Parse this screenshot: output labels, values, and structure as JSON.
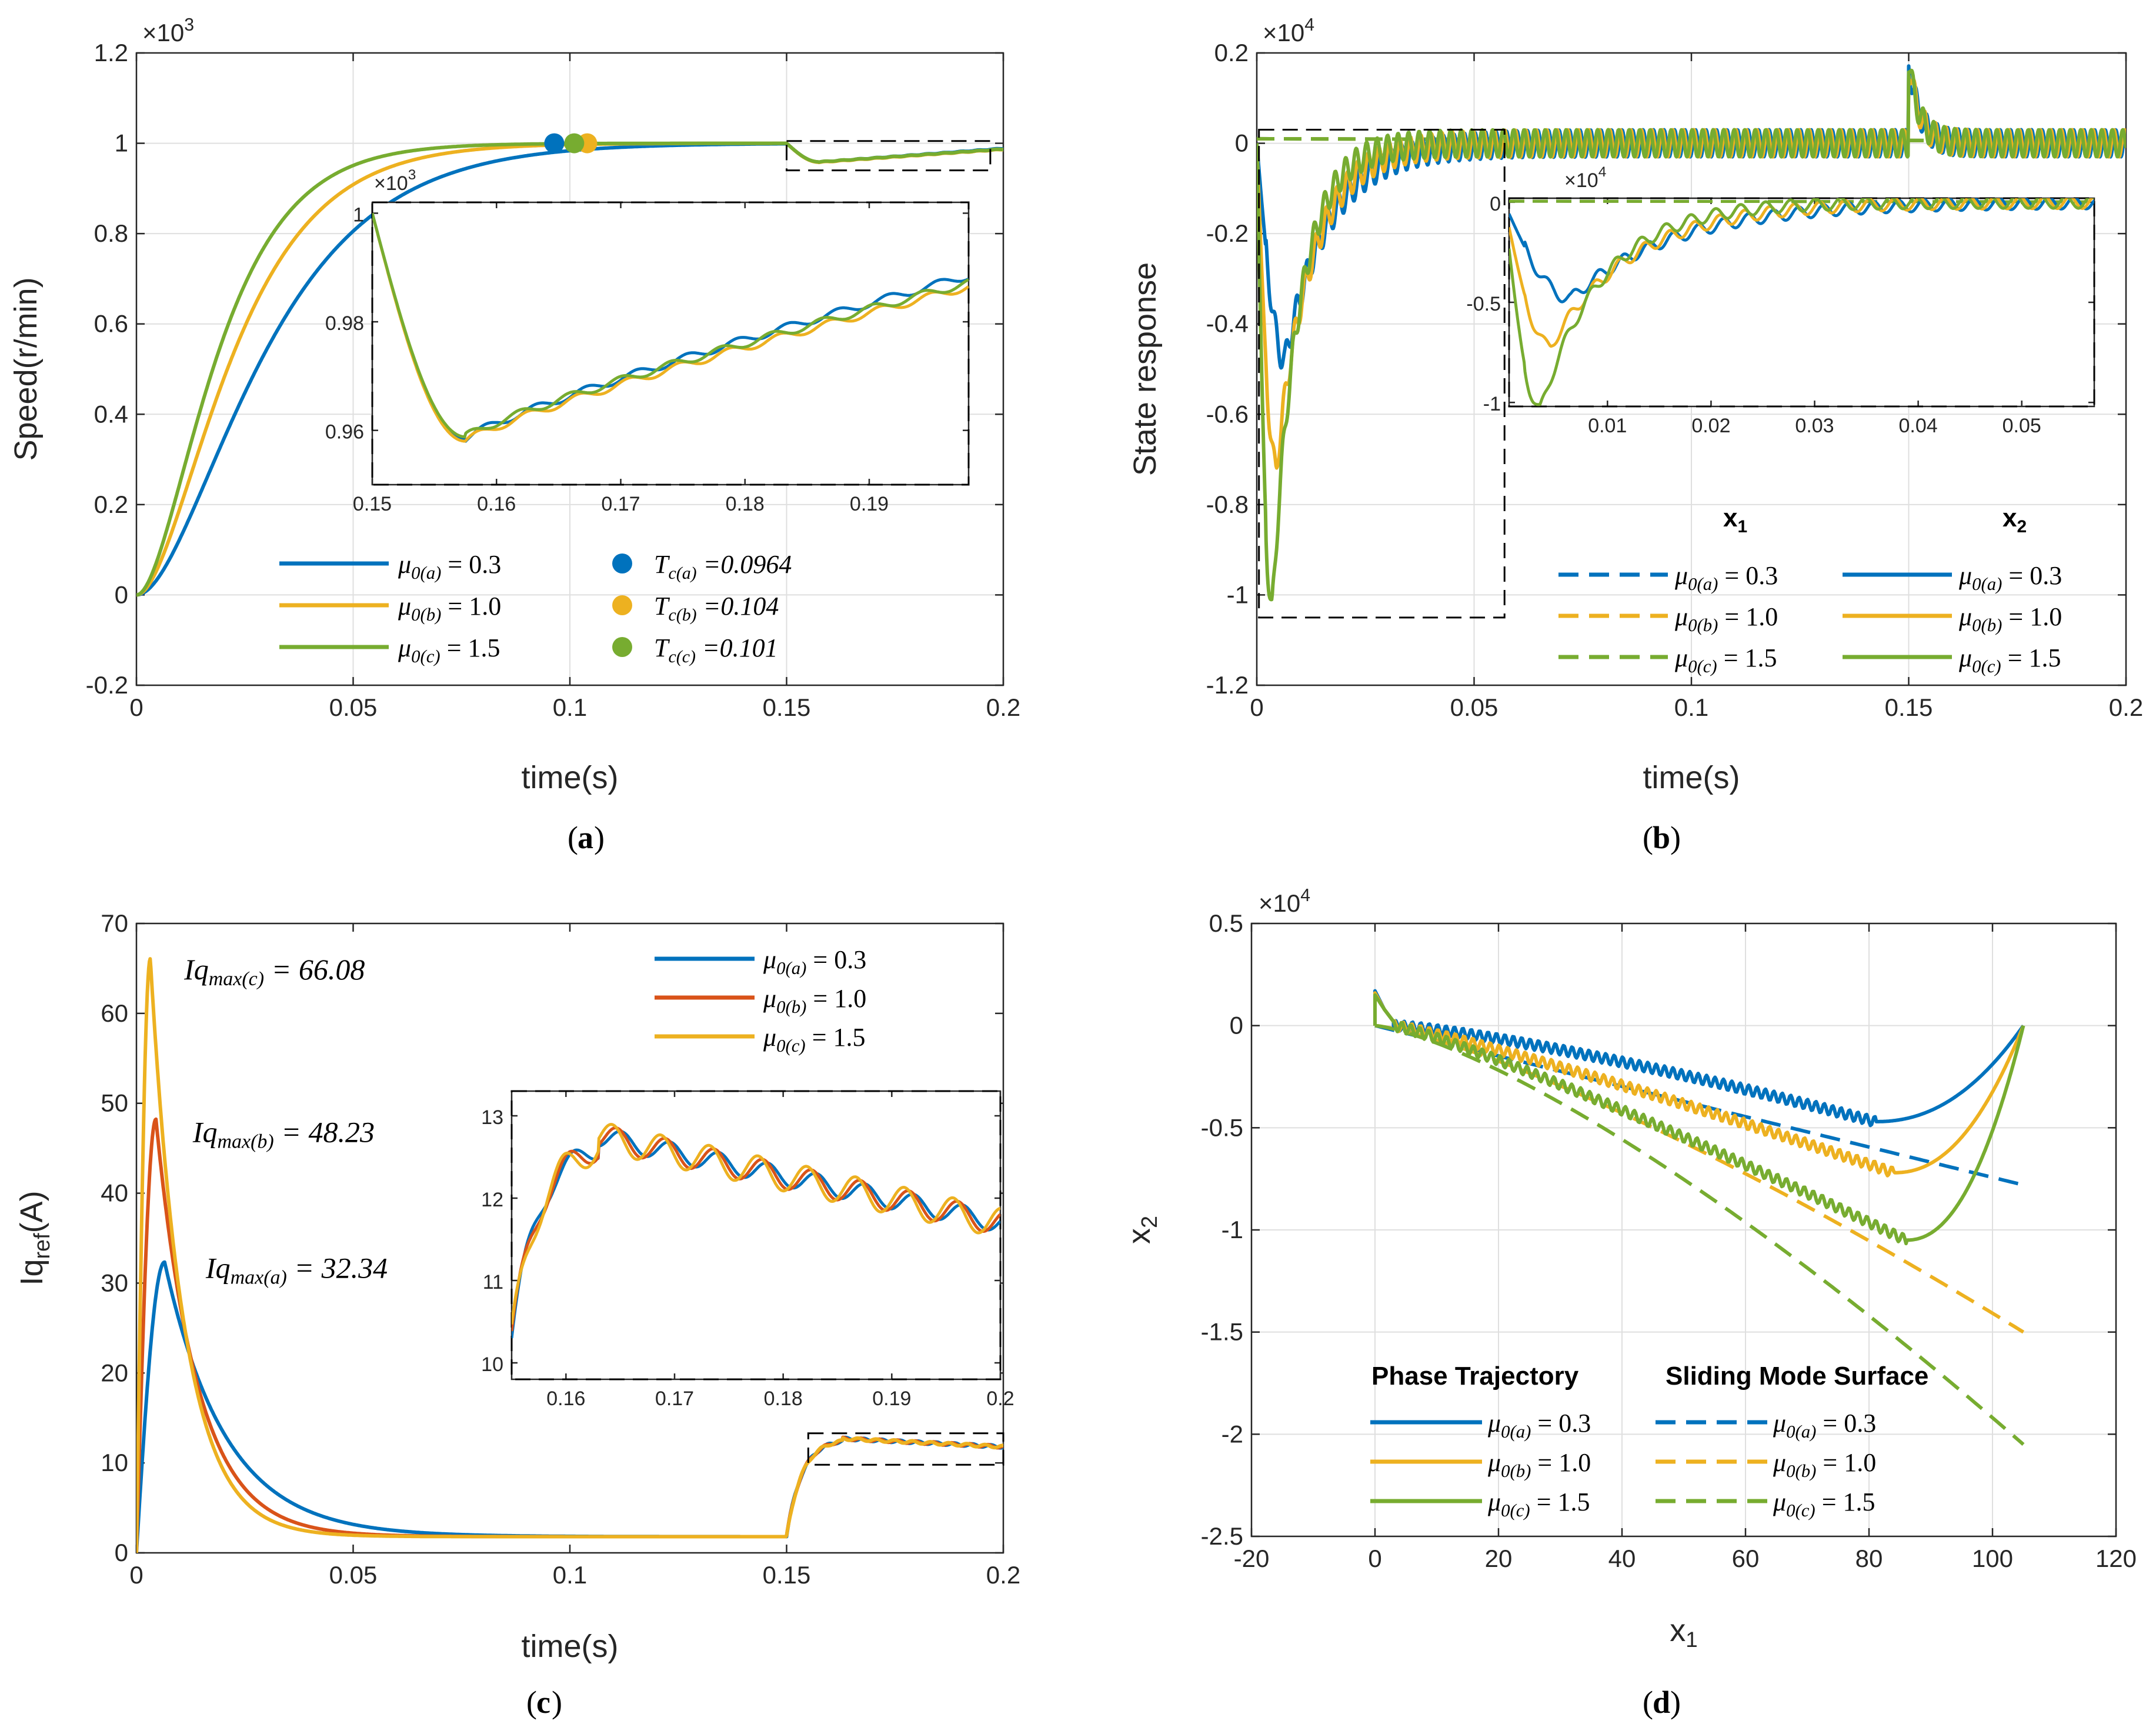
{
  "colors": {
    "blue": "#0072BD",
    "orange": "#EDB120",
    "red": "#D95319",
    "green": "#77AC30"
  },
  "captions": {
    "a": "a",
    "b": "b",
    "c": "c",
    "d": "d"
  },
  "chart_data": [
    {
      "id": "a",
      "type": "line",
      "xlabel": "time(s)",
      "ylabel": "Speed(r/min)",
      "exponent": "×10",
      "exponent_power": "3",
      "xlim": [
        0,
        0.2
      ],
      "ylim": [
        -0.2,
        1.2
      ],
      "xticks": [
        "0",
        "0.05",
        "0.1",
        "0.15",
        "0.2"
      ],
      "xtick_values": [
        0,
        0.05,
        0.1,
        0.15,
        0.2
      ],
      "yticks": [
        "-0.2",
        "0",
        "0.2",
        "0.4",
        "0.6",
        "0.8",
        "1",
        "1.2"
      ],
      "ytick_values": [
        -0.2,
        0,
        0.2,
        0.4,
        0.6,
        0.8,
        1,
        1.2
      ],
      "series": [
        {
          "name": "μ0(a) = 0.3",
          "sub": "0(a)",
          "val": "0.3",
          "color": "blue",
          "tau": 0.0165,
          "order": 2
        },
        {
          "name": "μ0(b) = 1.0",
          "sub": "0(b)",
          "val": "1.0",
          "color": "orange",
          "tau": 0.0125,
          "order": 2
        },
        {
          "name": "μ0(c) = 1.5",
          "sub": "0(c)",
          "val": "1.5",
          "color": "green",
          "tau": 0.0105,
          "order": 2
        }
      ],
      "markers": [
        {
          "name": "Tc(a) =0.0964",
          "sub": "c(a)",
          "val": "=0.0964",
          "x": 0.0964,
          "y": 1.0,
          "color": "blue"
        },
        {
          "name": "Tc(b) =0.104",
          "sub": "c(b)",
          "val": "=0.104",
          "x": 0.104,
          "y": 1.0,
          "color": "orange"
        },
        {
          "name": "Tc(c) =0.101",
          "sub": "c(c)",
          "val": "=0.101",
          "x": 0.101,
          "y": 1.0,
          "color": "green"
        }
      ],
      "inset": {
        "xlim": [
          0.15,
          0.198
        ],
        "ylim": [
          0.95,
          1.002
        ],
        "exponent": "×10",
        "exponent_power": "3",
        "xticks": [
          "0.15",
          "0.16",
          "0.17",
          "0.18",
          "0.19"
        ],
        "xtick_values": [
          0.15,
          0.16,
          0.17,
          0.18,
          0.19
        ],
        "yticks": [
          "0.96",
          "0.98",
          "1"
        ],
        "ytick_values": [
          0.96,
          0.98,
          1.0
        ],
        "min_x": 0.1575,
        "min_y": [
          0.9585,
          0.958,
          0.9588
        ],
        "end_y": [
          0.9885,
          0.9865,
          0.9872
        ]
      }
    },
    {
      "id": "b",
      "type": "line",
      "xlabel": "time(s)",
      "ylabel": "State response",
      "exponent": "×10",
      "exponent_power": "4",
      "xlim": [
        0,
        0.2
      ],
      "ylim": [
        -1.2,
        0.2
      ],
      "xticks": [
        "0",
        "0.05",
        "0.1",
        "0.15",
        "0.2"
      ],
      "xtick_values": [
        0,
        0.05,
        0.1,
        0.15,
        0.2
      ],
      "yticks": [
        "-1.2",
        "-1",
        "-0.8",
        "-0.6",
        "-0.4",
        "-0.2",
        "0",
        "0.2"
      ],
      "ytick_values": [
        -1.2,
        -1,
        -0.8,
        -0.6,
        -0.4,
        -0.2,
        0,
        0.2
      ],
      "legend_headers": [
        "x",
        "x"
      ],
      "legend_header_subs": [
        "1",
        "2"
      ],
      "series": [
        {
          "name": "x1 μ0(a) = 0.3",
          "sub": "0(a)",
          "val": "0.3",
          "color": "blue",
          "style": "dashed"
        },
        {
          "name": "x1 μ0(b) = 1.0",
          "sub": "0(b)",
          "val": "1.0",
          "color": "orange",
          "style": "dashed"
        },
        {
          "name": "x1 μ0(c) = 1.5",
          "sub": "0(c)",
          "val": "1.5",
          "color": "green",
          "style": "dashed"
        },
        {
          "name": "x2 μ0(a) = 0.3",
          "sub": "0(a)",
          "val": "0.3",
          "color": "blue",
          "style": "solid",
          "peak_t": 0.0065,
          "peak": -0.48
        },
        {
          "name": "x2 μ0(b) = 1.0",
          "sub": "0(b)",
          "val": "1.0",
          "color": "orange",
          "style": "solid",
          "peak_t": 0.0045,
          "peak": -0.72
        },
        {
          "name": "x2 μ0(c) = 1.5",
          "sub": "0(c)",
          "val": "1.5",
          "color": "green",
          "style": "solid",
          "peak_t": 0.0035,
          "peak": -1.04
        }
      ],
      "disturbance": {
        "t": 0.15,
        "peak": 0.18
      },
      "inset": {
        "xlim": [
          0.0005,
          0.057
        ],
        "ylim": [
          -1.02,
          0.02
        ],
        "exponent": "×10",
        "exponent_power": "4",
        "xticks": [
          "0.01",
          "0.02",
          "0.03",
          "0.04",
          "0.05"
        ],
        "xtick_values": [
          0.01,
          0.02,
          0.03,
          0.04,
          0.05
        ],
        "yticks": [
          "-1",
          "-0.5",
          "0"
        ],
        "ytick_values": [
          -1,
          -0.5,
          0
        ]
      }
    },
    {
      "id": "c",
      "type": "line",
      "xlabel": "time(s)",
      "ylabel": "Iq",
      "ylabel_sub": "ref",
      "ylabel_suffix": "(A)",
      "xlim": [
        0,
        0.2
      ],
      "ylim": [
        0,
        70
      ],
      "xticks": [
        "0",
        "0.05",
        "0.1",
        "0.15",
        "0.2"
      ],
      "xtick_values": [
        0,
        0.05,
        0.1,
        0.15,
        0.2
      ],
      "yticks": [
        "0",
        "10",
        "20",
        "30",
        "40",
        "50",
        "60",
        "70"
      ],
      "ytick_values": [
        0,
        10,
        20,
        30,
        40,
        50,
        60,
        70
      ],
      "series": [
        {
          "name": "μ0(a) = 0.3",
          "sub": "0(a)",
          "val": "0.3",
          "color": "blue",
          "peak": 32.34,
          "peak_t": 0.0065
        },
        {
          "name": "μ0(b) = 1.0",
          "sub": "0(b)",
          "val": "1.0",
          "color": "red",
          "peak": 48.23,
          "peak_t": 0.0045
        },
        {
          "name": "μ0(c) = 1.5",
          "sub": "0(c)",
          "val": "1.5",
          "color": "orange",
          "peak": 66.08,
          "peak_t": 0.0032
        }
      ],
      "annotations": [
        {
          "text": "Iqmax(c) = 66.08",
          "base": "Iq",
          "sub": "max(c)",
          "val": "= 66.08",
          "x": 0.011,
          "y": 63.8
        },
        {
          "text": "Iqmax(b) = 48.23",
          "base": "Iq",
          "sub": "max(b)",
          "val": "= 48.23",
          "x": 0.013,
          "y": 45.7
        },
        {
          "text": "Iqmax(a) = 32.34",
          "base": "Iq",
          "sub": "max(a)",
          "val": "= 32.34",
          "x": 0.016,
          "y": 30.6
        }
      ],
      "steady": 1.8,
      "disturbed": 11.8,
      "inset": {
        "xlim": [
          0.155,
          0.2
        ],
        "ylim": [
          9.8,
          13.3
        ],
        "xticks": [
          "0.16",
          "0.17",
          "0.18",
          "0.19",
          "0.2"
        ],
        "xtick_values": [
          0.16,
          0.17,
          0.18,
          0.19,
          0.2
        ],
        "yticks": [
          "10",
          "11",
          "12",
          "13"
        ],
        "ytick_values": [
          10,
          11,
          12,
          13
        ]
      }
    },
    {
      "id": "d",
      "type": "line",
      "xlabel": "x",
      "xlabel_sub": "1",
      "ylabel": "x",
      "ylabel_sub": "2",
      "exponent": "×10",
      "exponent_power": "4",
      "xlim": [
        -20,
        120
      ],
      "ylim": [
        -2.5,
        0.5
      ],
      "xticks": [
        "-20",
        "0",
        "20",
        "40",
        "60",
        "80",
        "100",
        "120"
      ],
      "xtick_values": [
        -20,
        0,
        20,
        40,
        60,
        80,
        100,
        120
      ],
      "yticks": [
        "-2.5",
        "-2",
        "-1.5",
        "-1",
        "-0.5",
        "0",
        "0.5"
      ],
      "ytick_values": [
        -2.5,
        -2,
        -1.5,
        -1,
        -0.5,
        0,
        0.5
      ],
      "legend_headers": [
        "Phase Trajectory",
        "Sliding Mode Surface"
      ],
      "series": [
        {
          "name": "Phase μ0(a) = 0.3",
          "sub": "0(a)",
          "val": "0.3",
          "color": "blue",
          "style": "solid",
          "min_x": 81,
          "min_y": -0.47
        },
        {
          "name": "Phase μ0(b) = 1.0",
          "sub": "0(b)",
          "val": "1.0",
          "color": "orange",
          "style": "solid",
          "min_x": 84,
          "min_y": -0.72
        },
        {
          "name": "Phase μ0(c) = 1.5",
          "sub": "0(c)",
          "val": "1.5",
          "color": "green",
          "style": "solid",
          "min_x": 86,
          "min_y": -1.05
        },
        {
          "name": "Surface μ0(a) = 0.3",
          "sub": "0(a)",
          "val": "0.3",
          "color": "blue",
          "style": "dashed",
          "end_y": -0.78
        },
        {
          "name": "Surface μ0(b) = 1.0",
          "sub": "0(b)",
          "val": "1.0",
          "color": "orange",
          "style": "dashed",
          "end_y": -1.5
        },
        {
          "name": "Surface μ0(c) = 1.5",
          "sub": "0(c)",
          "val": "1.5",
          "color": "green",
          "style": "dashed",
          "end_y": -2.05
        }
      ],
      "x_end": 105
    }
  ]
}
